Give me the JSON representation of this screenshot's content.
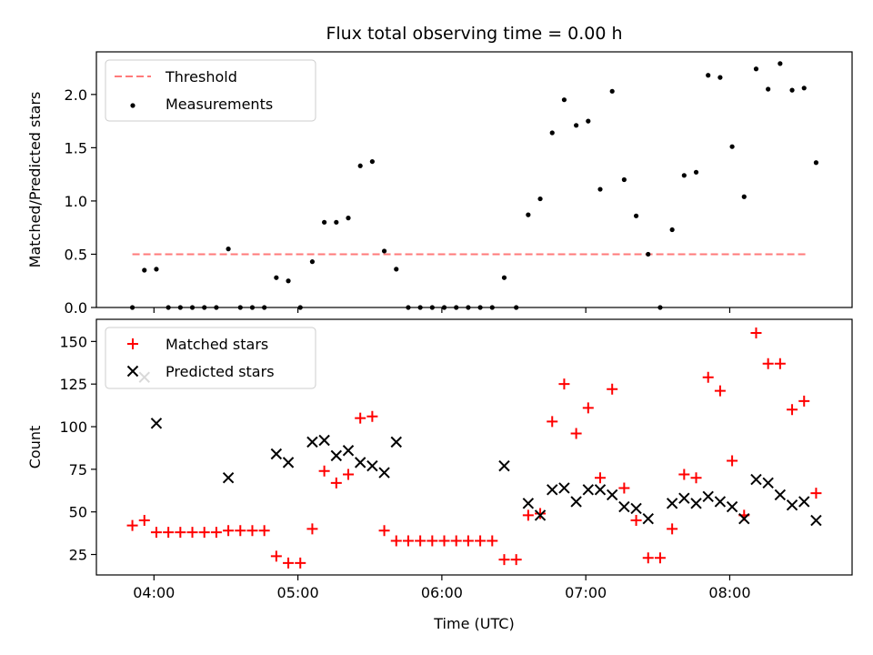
{
  "chart_data": [
    {
      "type": "scatter",
      "title": "Flux total observing time = 0.00 h",
      "xlabel": "",
      "ylabel": "Matched/Predicted stars",
      "xlim": [
        "03:36",
        "08:51"
      ],
      "ylim": [
        0,
        2.4
      ],
      "yticks": [
        0.0,
        0.5,
        1.0,
        1.5,
        2.0
      ],
      "ytick_labels": [
        "0.0",
        "0.5",
        "1.0",
        "1.5",
        "2.0"
      ],
      "xticks": [
        "04:00",
        "05:00",
        "06:00",
        "07:00",
        "08:00"
      ],
      "grid": false,
      "legend_position": "top-left",
      "series": [
        {
          "name": "Threshold",
          "style": "dashed-line",
          "color": "#ff7a7a",
          "points": [
            [
              "03:51",
              0.5
            ],
            [
              "08:32",
              0.5
            ]
          ]
        },
        {
          "name": "Measurements",
          "style": "dot",
          "color": "#000000",
          "points": [
            [
              "03:51",
              0.0
            ],
            [
              "03:56",
              0.35
            ],
            [
              "04:01",
              0.36
            ],
            [
              "04:06",
              0.0
            ],
            [
              "04:11",
              0.0
            ],
            [
              "04:16",
              0.0
            ],
            [
              "04:21",
              0.0
            ],
            [
              "04:26",
              0.0
            ],
            [
              "04:31",
              0.55
            ],
            [
              "04:36",
              0.0
            ],
            [
              "04:41",
              0.0
            ],
            [
              "04:46",
              0.0
            ],
            [
              "04:51",
              0.28
            ],
            [
              "04:56",
              0.25
            ],
            [
              "05:01",
              0.0
            ],
            [
              "05:06",
              0.43
            ],
            [
              "05:11",
              0.8
            ],
            [
              "05:16",
              0.8
            ],
            [
              "05:21",
              0.84
            ],
            [
              "05:26",
              1.33
            ],
            [
              "05:31",
              1.37
            ],
            [
              "05:36",
              0.53
            ],
            [
              "05:41",
              0.36
            ],
            [
              "05:46",
              0.0
            ],
            [
              "05:51",
              0.0
            ],
            [
              "05:56",
              0.0
            ],
            [
              "06:01",
              0.0
            ],
            [
              "06:06",
              0.0
            ],
            [
              "06:11",
              0.0
            ],
            [
              "06:16",
              0.0
            ],
            [
              "06:21",
              0.0
            ],
            [
              "06:26",
              0.28
            ],
            [
              "06:31",
              0.0
            ],
            [
              "06:36",
              0.87
            ],
            [
              "06:41",
              1.02
            ],
            [
              "06:46",
              1.64
            ],
            [
              "06:51",
              1.95
            ],
            [
              "06:56",
              1.71
            ],
            [
              "07:01",
              1.75
            ],
            [
              "07:06",
              1.11
            ],
            [
              "07:11",
              2.03
            ],
            [
              "07:16",
              1.2
            ],
            [
              "07:21",
              0.86
            ],
            [
              "07:26",
              0.5
            ],
            [
              "07:31",
              0.0
            ],
            [
              "07:36",
              0.73
            ],
            [
              "07:41",
              1.24
            ],
            [
              "07:46",
              1.27
            ],
            [
              "07:51",
              2.18
            ],
            [
              "07:56",
              2.16
            ],
            [
              "08:01",
              1.51
            ],
            [
              "08:06",
              1.04
            ],
            [
              "08:11",
              2.24
            ],
            [
              "08:16",
              2.05
            ],
            [
              "08:21",
              2.29
            ],
            [
              "08:26",
              2.04
            ],
            [
              "08:31",
              2.06
            ],
            [
              "08:36",
              1.36
            ]
          ]
        }
      ]
    },
    {
      "type": "scatter",
      "title": "",
      "xlabel": "Time (UTC)",
      "ylabel": "Count",
      "xlim": [
        "03:36",
        "08:51"
      ],
      "ylim": [
        13,
        163
      ],
      "yticks": [
        25,
        50,
        75,
        100,
        125,
        150
      ],
      "ytick_labels": [
        "25",
        "50",
        "75",
        "100",
        "125",
        "150"
      ],
      "xticks": [
        "04:00",
        "05:00",
        "06:00",
        "07:00",
        "08:00"
      ],
      "xtick_labels": [
        "04:00",
        "05:00",
        "06:00",
        "07:00",
        "08:00"
      ],
      "grid": false,
      "legend_position": "top-left",
      "series": [
        {
          "name": "Matched stars",
          "style": "plus",
          "color": "#ff0000",
          "points": [
            [
              "03:51",
              42
            ],
            [
              "03:56",
              45
            ],
            [
              "04:01",
              38
            ],
            [
              "04:06",
              38
            ],
            [
              "04:11",
              38
            ],
            [
              "04:16",
              38
            ],
            [
              "04:21",
              38
            ],
            [
              "04:26",
              38
            ],
            [
              "04:31",
              39
            ],
            [
              "04:36",
              39
            ],
            [
              "04:41",
              39
            ],
            [
              "04:46",
              39
            ],
            [
              "04:51",
              24
            ],
            [
              "04:56",
              20
            ],
            [
              "05:01",
              20
            ],
            [
              "05:06",
              40
            ],
            [
              "05:11",
              74
            ],
            [
              "05:16",
              67
            ],
            [
              "05:21",
              72
            ],
            [
              "05:26",
              105
            ],
            [
              "05:31",
              106
            ],
            [
              "05:36",
              39
            ],
            [
              "05:41",
              33
            ],
            [
              "05:46",
              33
            ],
            [
              "05:51",
              33
            ],
            [
              "05:56",
              33
            ],
            [
              "06:01",
              33
            ],
            [
              "06:06",
              33
            ],
            [
              "06:11",
              33
            ],
            [
              "06:16",
              33
            ],
            [
              "06:21",
              33
            ],
            [
              "06:26",
              22
            ],
            [
              "06:31",
              22
            ],
            [
              "06:36",
              48
            ],
            [
              "06:41",
              49
            ],
            [
              "06:46",
              103
            ],
            [
              "06:51",
              125
            ],
            [
              "06:56",
              96
            ],
            [
              "07:01",
              111
            ],
            [
              "07:06",
              70
            ],
            [
              "07:11",
              122
            ],
            [
              "07:16",
              64
            ],
            [
              "07:21",
              45
            ],
            [
              "07:26",
              23
            ],
            [
              "07:31",
              23
            ],
            [
              "07:36",
              40
            ],
            [
              "07:41",
              72
            ],
            [
              "07:46",
              70
            ],
            [
              "07:51",
              129
            ],
            [
              "07:56",
              121
            ],
            [
              "08:01",
              80
            ],
            [
              "08:06",
              48
            ],
            [
              "08:11",
              155
            ],
            [
              "08:16",
              137
            ],
            [
              "08:21",
              137
            ],
            [
              "08:26",
              110
            ],
            [
              "08:31",
              115
            ],
            [
              "08:36",
              61
            ]
          ]
        },
        {
          "name": "Predicted stars",
          "style": "x",
          "color": "#000000",
          "points": [
            [
              "03:56",
              129
            ],
            [
              "04:01",
              102
            ],
            [
              "04:31",
              70
            ],
            [
              "04:51",
              84
            ],
            [
              "04:56",
              79
            ],
            [
              "05:06",
              91
            ],
            [
              "05:11",
              92
            ],
            [
              "05:16",
              83
            ],
            [
              "05:21",
              86
            ],
            [
              "05:26",
              79
            ],
            [
              "05:31",
              77
            ],
            [
              "05:36",
              73
            ],
            [
              "05:41",
              91
            ],
            [
              "06:26",
              77
            ],
            [
              "06:36",
              55
            ],
            [
              "06:41",
              48
            ],
            [
              "06:46",
              63
            ],
            [
              "06:51",
              64
            ],
            [
              "06:56",
              56
            ],
            [
              "07:01",
              63
            ],
            [
              "07:06",
              63
            ],
            [
              "07:11",
              60
            ],
            [
              "07:16",
              53
            ],
            [
              "07:21",
              52
            ],
            [
              "07:26",
              46
            ],
            [
              "07:36",
              55
            ],
            [
              "07:41",
              58
            ],
            [
              "07:46",
              55
            ],
            [
              "07:51",
              59
            ],
            [
              "07:56",
              56
            ],
            [
              "08:01",
              53
            ],
            [
              "08:06",
              46
            ],
            [
              "08:11",
              69
            ],
            [
              "08:16",
              67
            ],
            [
              "08:21",
              60
            ],
            [
              "08:26",
              54
            ],
            [
              "08:31",
              56
            ],
            [
              "08:36",
              45
            ]
          ]
        }
      ]
    }
  ]
}
